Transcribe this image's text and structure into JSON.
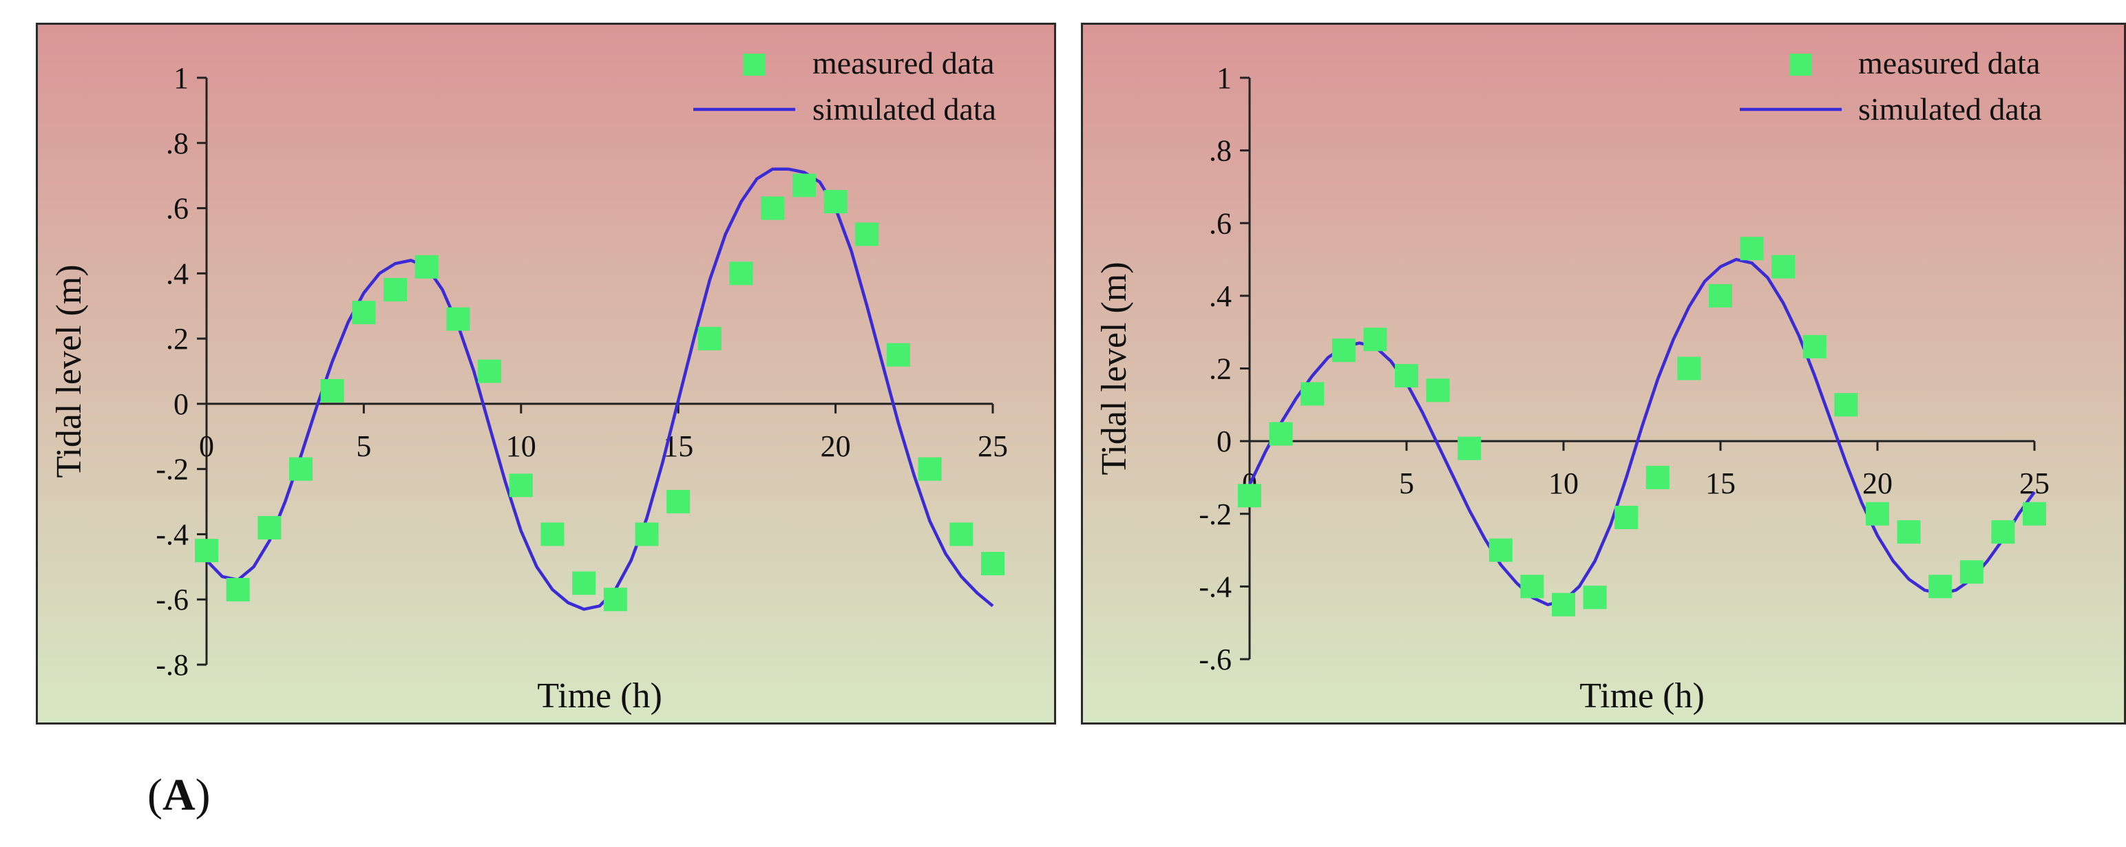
{
  "figure_label": {
    "open": "(",
    "letter": "A",
    "close": ")"
  },
  "colors": {
    "bg_top": "#DA9696",
    "bg_bottom": "#D8E7C4",
    "marker": "#48EE6E",
    "line": "#3B2BD6",
    "axis": "#222222",
    "border": "#2B2B2B"
  },
  "chart_data": [
    {
      "type": "line",
      "title": "",
      "xlabel": "Time (h)",
      "ylabel": "Tidal level (m)",
      "xlim": [
        0,
        25
      ],
      "ylim": [
        -0.8,
        1
      ],
      "xticks": [
        0,
        5,
        10,
        15,
        20,
        25
      ],
      "yticks": [
        1,
        0.8,
        0.6,
        0.4,
        0.2,
        0,
        -0.2,
        -0.4,
        -0.6,
        -0.8
      ],
      "grid": false,
      "legend": {
        "position": "top-right",
        "entries": [
          "measured data",
          "simulated data"
        ]
      },
      "series": [
        {
          "name": "measured data",
          "style": "marker",
          "x": [
            0,
            1,
            2,
            3,
            4,
            5,
            6,
            7,
            8,
            9,
            10,
            11,
            12,
            13,
            14,
            15,
            16,
            17,
            18,
            19,
            20,
            21,
            22,
            23,
            24,
            25
          ],
          "y": [
            -0.45,
            -0.57,
            -0.38,
            -0.2,
            0.04,
            0.28,
            0.35,
            0.42,
            0.26,
            0.1,
            -0.25,
            -0.4,
            -0.55,
            -0.6,
            -0.4,
            -0.3,
            0.2,
            0.4,
            0.6,
            0.67,
            0.62,
            0.52,
            0.15,
            -0.2,
            -0.4,
            -0.49
          ]
        },
        {
          "name": "simulated data",
          "style": "line",
          "x": [
            0,
            0.5,
            1,
            1.5,
            2,
            2.5,
            3,
            3.5,
            4,
            4.5,
            5,
            5.5,
            6,
            6.5,
            7,
            7.5,
            8,
            8.5,
            9,
            9.5,
            10,
            10.5,
            11,
            11.5,
            12,
            12.5,
            13,
            13.5,
            14,
            14.5,
            15,
            15.5,
            16,
            16.5,
            17,
            17.5,
            18,
            18.5,
            19,
            19.5,
            20,
            20.5,
            21,
            21.5,
            22,
            22.5,
            23,
            23.5,
            24,
            24.5,
            25
          ],
          "y": [
            -0.48,
            -0.53,
            -0.54,
            -0.5,
            -0.42,
            -0.3,
            -0.16,
            -0.01,
            0.13,
            0.25,
            0.34,
            0.4,
            0.43,
            0.44,
            0.42,
            0.35,
            0.24,
            0.1,
            -0.07,
            -0.24,
            -0.39,
            -0.5,
            -0.57,
            -0.61,
            -0.63,
            -0.62,
            -0.57,
            -0.48,
            -0.35,
            -0.18,
            0.01,
            0.2,
            0.38,
            0.52,
            0.62,
            0.69,
            0.72,
            0.72,
            0.71,
            0.68,
            0.6,
            0.47,
            0.3,
            0.12,
            -0.06,
            -0.22,
            -0.36,
            -0.46,
            -0.53,
            -0.58,
            -0.62
          ]
        }
      ]
    },
    {
      "type": "line",
      "title": "",
      "xlabel": "Time (h)",
      "ylabel": "Tidal level (m)",
      "xlim": [
        0,
        25
      ],
      "ylim": [
        -0.6,
        1
      ],
      "xticks": [
        0,
        5,
        10,
        15,
        20,
        25
      ],
      "yticks": [
        1,
        0.8,
        0.6,
        0.4,
        0.2,
        0,
        -0.2,
        -0.4,
        -0.6
      ],
      "grid": false,
      "legend": {
        "position": "top-right",
        "entries": [
          "measured data",
          "simulated data"
        ]
      },
      "series": [
        {
          "name": "measured data",
          "style": "marker",
          "x": [
            0,
            1,
            2,
            3,
            4,
            5,
            6,
            7,
            8,
            9,
            10,
            11,
            12,
            13,
            14,
            15,
            16,
            17,
            18,
            19,
            20,
            21,
            22,
            23,
            24,
            25
          ],
          "y": [
            -0.15,
            0.02,
            0.13,
            0.25,
            0.28,
            0.18,
            0.14,
            -0.02,
            -0.3,
            -0.4,
            -0.45,
            -0.43,
            -0.21,
            -0.1,
            0.2,
            0.4,
            0.53,
            0.48,
            0.26,
            0.1,
            -0.2,
            -0.25,
            -0.4,
            -0.36,
            -0.25,
            -0.2
          ]
        },
        {
          "name": "simulated data",
          "style": "line",
          "x": [
            0,
            0.5,
            1,
            1.5,
            2,
            2.5,
            3,
            3.5,
            4,
            4.5,
            5,
            5.5,
            6,
            6.5,
            7,
            7.5,
            8,
            8.5,
            9,
            9.5,
            10,
            10.5,
            11,
            11.5,
            12,
            12.5,
            13,
            13.5,
            14,
            14.5,
            15,
            15.5,
            16,
            16.5,
            17,
            17.5,
            18,
            18.5,
            19,
            19.5,
            20,
            20.5,
            21,
            21.5,
            22,
            22.5,
            23,
            23.5,
            24,
            24.5,
            25
          ],
          "y": [
            -0.12,
            -0.03,
            0.05,
            0.12,
            0.18,
            0.23,
            0.26,
            0.27,
            0.26,
            0.22,
            0.16,
            0.08,
            -0.01,
            -0.1,
            -0.19,
            -0.27,
            -0.34,
            -0.39,
            -0.43,
            -0.45,
            -0.44,
            -0.4,
            -0.33,
            -0.23,
            -0.1,
            0.04,
            0.17,
            0.28,
            0.37,
            0.44,
            0.48,
            0.5,
            0.49,
            0.45,
            0.38,
            0.29,
            0.18,
            0.06,
            -0.06,
            -0.17,
            -0.26,
            -0.33,
            -0.38,
            -0.41,
            -0.42,
            -0.41,
            -0.38,
            -0.33,
            -0.27,
            -0.2,
            -0.14
          ]
        }
      ]
    }
  ]
}
